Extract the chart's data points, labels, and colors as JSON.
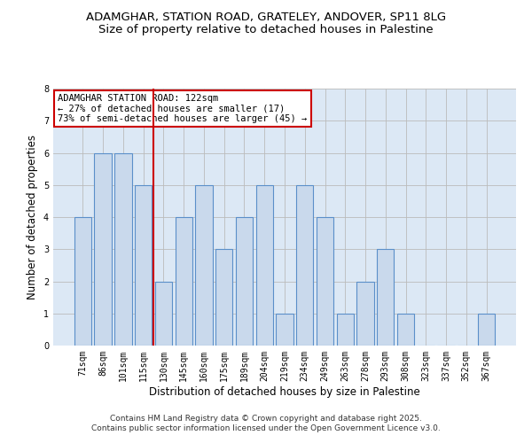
{
  "title_line1": "ADAMGHAR, STATION ROAD, GRATELEY, ANDOVER, SP11 8LG",
  "title_line2": "Size of property relative to detached houses in Palestine",
  "xlabel": "Distribution of detached houses by size in Palestine",
  "ylabel": "Number of detached properties",
  "categories": [
    "71sqm",
    "86sqm",
    "101sqm",
    "115sqm",
    "130sqm",
    "145sqm",
    "160sqm",
    "175sqm",
    "189sqm",
    "204sqm",
    "219sqm",
    "234sqm",
    "249sqm",
    "263sqm",
    "278sqm",
    "293sqm",
    "308sqm",
    "323sqm",
    "337sqm",
    "352sqm",
    "367sqm"
  ],
  "values": [
    4,
    6,
    6,
    5,
    2,
    4,
    5,
    3,
    4,
    5,
    1,
    5,
    4,
    1,
    2,
    3,
    1,
    0,
    0,
    0,
    1
  ],
  "bar_color": "#c9d9ec",
  "bar_edge_color": "#5b8fc9",
  "reference_line_index": 3,
  "reference_line_color": "#cc0000",
  "ylim": [
    0,
    8
  ],
  "yticks": [
    0,
    1,
    2,
    3,
    4,
    5,
    6,
    7,
    8
  ],
  "grid_color": "#bbbbbb",
  "background_color": "#dce8f5",
  "fig_background": "#ffffff",
  "annotation_text": "ADAMGHAR STATION ROAD: 122sqm\n← 27% of detached houses are smaller (17)\n73% of semi-detached houses are larger (45) →",
  "annotation_box_facecolor": "#ffffff",
  "annotation_box_edgecolor": "#cc0000",
  "footer_text": "Contains HM Land Registry data © Crown copyright and database right 2025.\nContains public sector information licensed under the Open Government Licence v3.0.",
  "title_fontsize": 9.5,
  "subtitle_fontsize": 9.5,
  "tick_fontsize": 7,
  "label_fontsize": 8.5,
  "annotation_fontsize": 7.5,
  "footer_fontsize": 6.5
}
